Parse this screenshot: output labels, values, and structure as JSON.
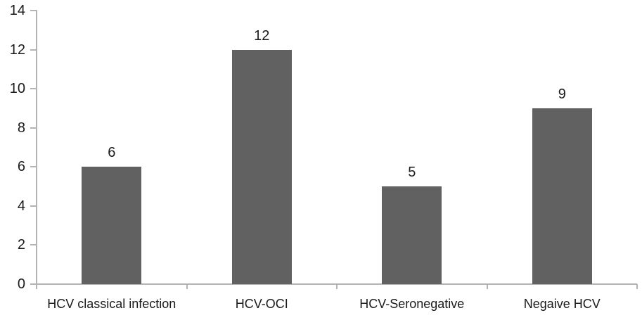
{
  "chart_data": {
    "type": "bar",
    "title": "",
    "xlabel": "",
    "ylabel": "",
    "categories": [
      "HCV classical infection",
      "HCV-OCI",
      "HCV-Seronegative",
      "Negaive HCV"
    ],
    "values": [
      6,
      12,
      5,
      9
    ],
    "data_labels": [
      "6",
      "12",
      "5",
      "9"
    ],
    "yticks": [
      0,
      2,
      4,
      6,
      8,
      10,
      12,
      14
    ],
    "ylim": [
      0,
      14
    ],
    "grid": false,
    "legend": false,
    "colors": {
      "bar_fill": "#616161",
      "axis_line": "#b3b3b3",
      "text": "#1a1a1a",
      "background": "#ffffff"
    }
  }
}
